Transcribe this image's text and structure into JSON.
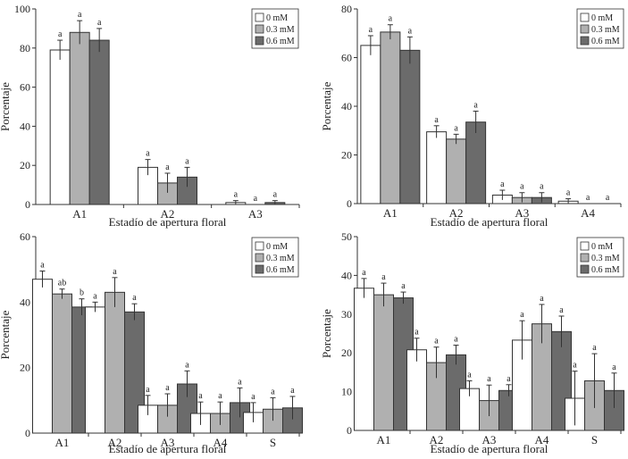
{
  "legend_labels": [
    "0 mM",
    "0.3 mM",
    "0.6 mM"
  ],
  "series_colors": [
    "#ffffff",
    "#b0b0b0",
    "#6b6b6b"
  ],
  "chart_data": [
    {
      "type": "bar",
      "title": "",
      "xlabel": "Estadío de apertura floral",
      "ylabel": "Porcentaje",
      "ylim": [
        0,
        100
      ],
      "yticks": [
        0,
        20,
        40,
        60,
        80,
        100
      ],
      "categories": [
        "A1",
        "A2",
        "A3"
      ],
      "series": [
        {
          "name": "0 mM",
          "values": [
            79,
            19,
            1
          ],
          "errors": [
            5,
            4,
            1
          ],
          "letters": [
            "a",
            "a",
            "a"
          ]
        },
        {
          "name": "0.3 mM",
          "values": [
            88,
            11,
            0
          ],
          "errors": [
            6,
            5,
            0
          ],
          "letters": [
            "a",
            "a",
            "a"
          ]
        },
        {
          "name": "0.6 mM",
          "values": [
            84,
            14,
            1
          ],
          "errors": [
            6,
            5,
            1
          ],
          "letters": [
            "a",
            "a",
            "a"
          ]
        }
      ]
    },
    {
      "type": "bar",
      "title": "",
      "xlabel": "Estadío de apertura floral",
      "ylabel": "Porcentaje",
      "ylim": [
        0,
        80
      ],
      "yticks": [
        0,
        20,
        40,
        60,
        80
      ],
      "categories": [
        "A1",
        "A2",
        "A3",
        "A4"
      ],
      "series": [
        {
          "name": "0 mM",
          "values": [
            65,
            29.5,
            3.5,
            1
          ],
          "errors": [
            4,
            2.5,
            2,
            1
          ],
          "letters": [
            "a",
            "a",
            "a",
            "a"
          ]
        },
        {
          "name": "0.3 mM",
          "values": [
            70.5,
            26.5,
            2.5,
            0
          ],
          "errors": [
            3,
            2,
            2,
            0
          ],
          "letters": [
            "a",
            "a",
            "a",
            "a"
          ]
        },
        {
          "name": "0.6 mM",
          "values": [
            63,
            33.5,
            2.5,
            0
          ],
          "errors": [
            5.5,
            4.5,
            2,
            0
          ],
          "letters": [
            "a",
            "a",
            "a",
            "a"
          ]
        }
      ]
    },
    {
      "type": "bar",
      "title": "",
      "xlabel": "Estadío de apertura floral",
      "ylabel": "Porcentaje",
      "ylim": [
        0,
        60
      ],
      "yticks": [
        0,
        20,
        40,
        60
      ],
      "categories": [
        "A1",
        "A2",
        "A3",
        "A4",
        "S"
      ],
      "series": [
        {
          "name": "0 mM",
          "values": [
            47,
            38.5,
            8.5,
            6,
            6.3
          ],
          "errors": [
            2.5,
            1.5,
            3,
            3.5,
            3
          ],
          "letters": [
            "a",
            "a",
            "a",
            "a",
            "a"
          ]
        },
        {
          "name": "0.3 mM",
          "values": [
            42.5,
            43,
            8.5,
            6,
            7.3
          ],
          "errors": [
            1.5,
            4.5,
            3.5,
            3.5,
            3.5
          ],
          "letters": [
            "ab",
            "a",
            "a",
            "a",
            "a"
          ]
        },
        {
          "name": "0.6 mM",
          "values": [
            38.5,
            37,
            15,
            9.3,
            7.7
          ],
          "errors": [
            2.5,
            2.5,
            4,
            4.5,
            3.5
          ],
          "letters": [
            "b",
            "a",
            "a",
            "a",
            "a"
          ]
        }
      ]
    },
    {
      "type": "bar",
      "title": "",
      "xlabel": "Estadío de apertura floral",
      "ylabel": "Porcentaje",
      "ylim": [
        0,
        50
      ],
      "yticks": [
        0,
        10,
        20,
        30,
        40,
        50
      ],
      "categories": [
        "A1",
        "A2",
        "A3",
        "A4",
        "S"
      ],
      "series": [
        {
          "name": "0 mM",
          "values": [
            36.7,
            20.8,
            10.8,
            23.3,
            8.3
          ],
          "errors": [
            2.5,
            3,
            2,
            5,
            7
          ],
          "letters": [
            "a",
            "a",
            "a",
            "a",
            "a"
          ]
        },
        {
          "name": "0.3 mM",
          "values": [
            35,
            17.5,
            7.7,
            27.5,
            12.8
          ],
          "errors": [
            3,
            4,
            4,
            5,
            7
          ],
          "letters": [
            "a",
            "a",
            "a",
            "a",
            "a"
          ]
        },
        {
          "name": "0.6 mM",
          "values": [
            34.2,
            19.5,
            10.3,
            25.5,
            10.3
          ],
          "errors": [
            1.5,
            2.5,
            1.5,
            4,
            4.5
          ],
          "letters": [
            "a",
            "a",
            "a",
            "a",
            "a"
          ]
        }
      ]
    }
  ]
}
